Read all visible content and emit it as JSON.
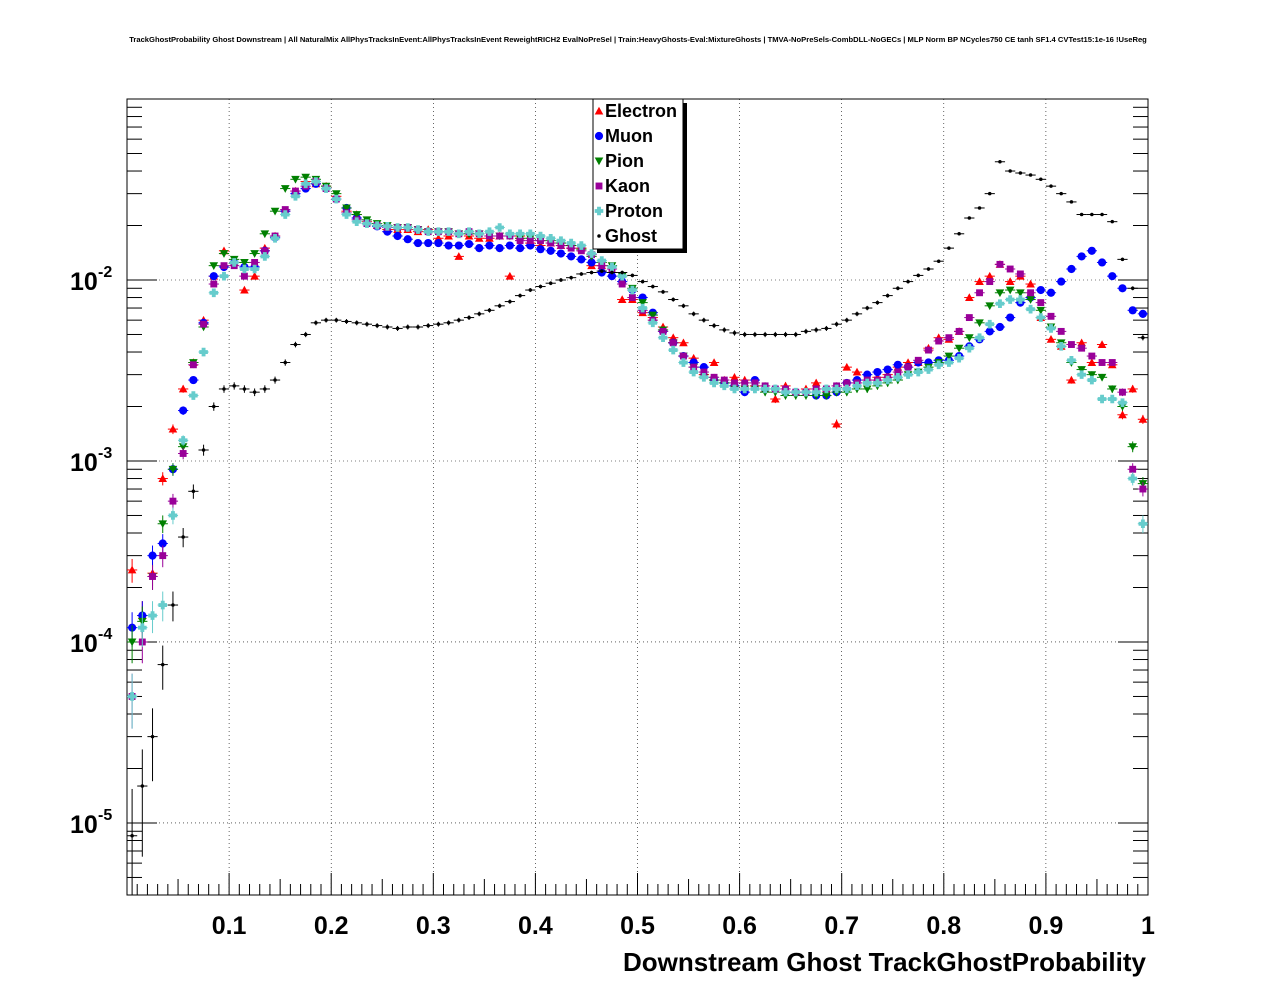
{
  "chart_data": {
    "type": "scatter",
    "title": "TrackGhostProbability Ghost Downstream | All NaturalMix AllPhysTracksInEvent:AllPhysTracksInEvent ReweightRICH2 EvalNoPreSel | Train:HeavyGhosts-Eval:MixtureGhosts | TMVA-NoPreSels-CombDLL-NoGECs | MLP Norm BP NCycles750 CE tanh SF1.4 CVTest15:1e-16 !UseReg",
    "xlabel": "Downstream Ghost TrackGhostProbability",
    "ylabel": "",
    "xlim": [
      0,
      1
    ],
    "ylim": [
      4e-06,
      0.1
    ],
    "yscale": "log",
    "grid": true,
    "legend_position": "top-center",
    "x_ticks": [
      "0.1",
      "0.2",
      "0.3",
      "0.4",
      "0.5",
      "0.6",
      "0.7",
      "0.8",
      "0.9",
      "1"
    ],
    "x_tick_values": [
      0.1,
      0.2,
      0.3,
      0.4,
      0.5,
      0.6,
      0.7,
      0.8,
      0.9,
      1.0
    ],
    "y_ticks": [
      {
        "value": 0.01,
        "base": "10",
        "exp": "-2"
      },
      {
        "value": 0.001,
        "base": "10",
        "exp": "-3"
      },
      {
        "value": 0.0001,
        "base": "10",
        "exp": "-4"
      },
      {
        "value": 1e-05,
        "base": "10",
        "exp": "-5"
      }
    ],
    "x": [
      0.005,
      0.015,
      0.025,
      0.035,
      0.045,
      0.055,
      0.065,
      0.075,
      0.085,
      0.095,
      0.105,
      0.115,
      0.125,
      0.135,
      0.145,
      0.155,
      0.165,
      0.175,
      0.185,
      0.195,
      0.205,
      0.215,
      0.225,
      0.235,
      0.245,
      0.255,
      0.265,
      0.275,
      0.285,
      0.295,
      0.305,
      0.315,
      0.325,
      0.335,
      0.345,
      0.355,
      0.365,
      0.375,
      0.385,
      0.395,
      0.405,
      0.415,
      0.425,
      0.435,
      0.445,
      0.455,
      0.465,
      0.475,
      0.485,
      0.495,
      0.505,
      0.515,
      0.525,
      0.535,
      0.545,
      0.555,
      0.565,
      0.575,
      0.585,
      0.595,
      0.605,
      0.615,
      0.625,
      0.635,
      0.645,
      0.655,
      0.665,
      0.675,
      0.685,
      0.695,
      0.705,
      0.715,
      0.725,
      0.735,
      0.745,
      0.755,
      0.765,
      0.775,
      0.785,
      0.795,
      0.805,
      0.815,
      0.825,
      0.835,
      0.845,
      0.855,
      0.865,
      0.875,
      0.885,
      0.895,
      0.905,
      0.915,
      0.925,
      0.935,
      0.945,
      0.955,
      0.965,
      0.975,
      0.985,
      0.995
    ],
    "series": [
      {
        "name": "Electron",
        "color": "#ff0000",
        "marker": "triangle-up",
        "values": [
          0.00025,
          0.00014,
          0.00024,
          0.0008,
          0.0015,
          0.0025,
          0.0035,
          0.006,
          0.0105,
          0.0145,
          0.0125,
          0.0088,
          0.0105,
          0.015,
          0.0175,
          0.024,
          0.031,
          0.035,
          0.034,
          0.033,
          0.029,
          0.024,
          0.023,
          0.021,
          0.02,
          0.019,
          0.019,
          0.019,
          0.0185,
          0.019,
          0.017,
          0.0175,
          0.0135,
          0.0175,
          0.017,
          0.017,
          0.0175,
          0.0105,
          0.0175,
          0.016,
          0.0155,
          0.016,
          0.0155,
          0.0155,
          0.015,
          0.012,
          0.012,
          0.011,
          0.0078,
          0.0078,
          0.0066,
          0.0062,
          0.0055,
          0.0048,
          0.0045,
          0.0037,
          0.003,
          0.0035,
          0.0028,
          0.0029,
          0.0028,
          0.0026,
          0.0025,
          0.0022,
          0.0026,
          0.0024,
          0.0025,
          0.0027,
          0.0025,
          0.0016,
          0.0033,
          0.0031,
          0.0028,
          0.0029,
          0.003,
          0.0033,
          0.0035,
          0.0035,
          0.0042,
          0.0048,
          0.0047,
          0.0052,
          0.008,
          0.0098,
          0.0105,
          0.0122,
          0.0098,
          0.0105,
          0.0095,
          0.0062,
          0.0047,
          0.0043,
          0.0028,
          0.0045,
          0.0035,
          0.0044,
          0.0034,
          0.0018,
          0.0025,
          0.0017
        ]
      },
      {
        "name": "Muon",
        "color": "#0000ff",
        "marker": "circle",
        "values": [
          0.00012,
          0.00014,
          0.0003,
          0.00035,
          0.0009,
          0.0019,
          0.0028,
          0.0058,
          0.0105,
          0.0118,
          0.0125,
          0.0118,
          0.0118,
          0.0145,
          0.0172,
          0.024,
          0.03,
          0.032,
          0.034,
          0.032,
          0.028,
          0.025,
          0.022,
          0.0205,
          0.0198,
          0.0185,
          0.0175,
          0.0168,
          0.016,
          0.016,
          0.016,
          0.0155,
          0.0155,
          0.0158,
          0.015,
          0.0155,
          0.015,
          0.0155,
          0.015,
          0.0155,
          0.0148,
          0.0145,
          0.014,
          0.0135,
          0.013,
          0.0125,
          0.011,
          0.0105,
          0.0098,
          0.0088,
          0.008,
          0.0066,
          0.0052,
          0.0045,
          0.0038,
          0.0035,
          0.0033,
          0.0028,
          0.0027,
          0.0026,
          0.0024,
          0.0028,
          0.0025,
          0.0025,
          0.0024,
          0.0024,
          0.0024,
          0.0023,
          0.0023,
          0.0024,
          0.0027,
          0.0028,
          0.003,
          0.0031,
          0.0032,
          0.0034,
          0.0033,
          0.0035,
          0.0035,
          0.0036,
          0.0036,
          0.0038,
          0.0043,
          0.0047,
          0.0052,
          0.0055,
          0.0062,
          0.0075,
          0.008,
          0.0088,
          0.0085,
          0.0098,
          0.0115,
          0.0135,
          0.0145,
          0.0125,
          0.0105,
          0.009,
          0.0068,
          0.0065
        ]
      },
      {
        "name": "Pion",
        "color": "#008000",
        "marker": "triangle-down",
        "values": [
          0.0001,
          0.00013,
          0.00023,
          0.00045,
          0.0009,
          0.0012,
          0.0035,
          0.0055,
          0.012,
          0.014,
          0.013,
          0.0125,
          0.014,
          0.018,
          0.024,
          0.032,
          0.036,
          0.037,
          0.036,
          0.033,
          0.03,
          0.025,
          0.023,
          0.0215,
          0.0205,
          0.02,
          0.0195,
          0.0195,
          0.019,
          0.0185,
          0.0185,
          0.0185,
          0.018,
          0.018,
          0.018,
          0.0175,
          0.0175,
          0.0175,
          0.017,
          0.017,
          0.0165,
          0.0165,
          0.016,
          0.0155,
          0.0148,
          0.0135,
          0.0125,
          0.012,
          0.0105,
          0.009,
          0.0075,
          0.0064,
          0.0053,
          0.0045,
          0.0038,
          0.0033,
          0.0029,
          0.0028,
          0.0027,
          0.0025,
          0.0025,
          0.0025,
          0.0024,
          0.0024,
          0.0023,
          0.0023,
          0.0023,
          0.0023,
          0.0023,
          0.0024,
          0.0024,
          0.0025,
          0.0025,
          0.0026,
          0.0027,
          0.0028,
          0.003,
          0.0031,
          0.0033,
          0.0035,
          0.0038,
          0.0042,
          0.0048,
          0.0058,
          0.0072,
          0.0085,
          0.0088,
          0.0085,
          0.0078,
          0.0068,
          0.0055,
          0.0045,
          0.0035,
          0.0032,
          0.003,
          0.0029,
          0.0025,
          0.002,
          0.0012,
          0.00075
        ]
      },
      {
        "name": "Kaon",
        "color": "#990099",
        "marker": "square",
        "values": [
          5e-05,
          0.0001,
          0.00023,
          0.0003,
          0.0006,
          0.0011,
          0.0034,
          0.0057,
          0.0095,
          0.012,
          0.012,
          0.0105,
          0.0125,
          0.0145,
          0.0175,
          0.0245,
          0.031,
          0.033,
          0.035,
          0.032,
          0.028,
          0.0235,
          0.0215,
          0.0205,
          0.02,
          0.0195,
          0.0195,
          0.0195,
          0.019,
          0.0185,
          0.0185,
          0.0185,
          0.018,
          0.0185,
          0.018,
          0.0175,
          0.0175,
          0.0175,
          0.0165,
          0.0165,
          0.0165,
          0.016,
          0.0155,
          0.015,
          0.0145,
          0.0138,
          0.012,
          0.0115,
          0.0095,
          0.008,
          0.0068,
          0.006,
          0.0052,
          0.0045,
          0.0038,
          0.0033,
          0.0031,
          0.0029,
          0.0028,
          0.0027,
          0.0027,
          0.0027,
          0.0026,
          0.0025,
          0.0025,
          0.0024,
          0.0024,
          0.0025,
          0.0025,
          0.0026,
          0.0027,
          0.0027,
          0.0028,
          0.0028,
          0.0029,
          0.0031,
          0.0033,
          0.0036,
          0.0041,
          0.0046,
          0.0048,
          0.0052,
          0.0062,
          0.0085,
          0.0098,
          0.0122,
          0.0115,
          0.0108,
          0.0085,
          0.0075,
          0.0063,
          0.0052,
          0.0044,
          0.0042,
          0.0038,
          0.0035,
          0.0035,
          0.0024,
          0.0009,
          0.0007
        ]
      },
      {
        "name": "Proton",
        "color": "#66cccc",
        "marker": "cross",
        "values": [
          5e-05,
          0.00012,
          0.00014,
          0.00016,
          0.0005,
          0.0013,
          0.0023,
          0.004,
          0.0085,
          0.0105,
          0.0125,
          0.0115,
          0.0115,
          0.0135,
          0.017,
          0.023,
          0.029,
          0.034,
          0.035,
          0.032,
          0.028,
          0.023,
          0.021,
          0.0205,
          0.02,
          0.0198,
          0.0195,
          0.0195,
          0.019,
          0.0185,
          0.0185,
          0.0185,
          0.018,
          0.0185,
          0.018,
          0.0185,
          0.0195,
          0.018,
          0.018,
          0.018,
          0.0175,
          0.017,
          0.0165,
          0.016,
          0.0155,
          0.014,
          0.0128,
          0.0118,
          0.0105,
          0.0088,
          0.007,
          0.0058,
          0.0048,
          0.0041,
          0.0035,
          0.0031,
          0.0029,
          0.0027,
          0.0026,
          0.0025,
          0.0025,
          0.0025,
          0.0025,
          0.0025,
          0.0024,
          0.0024,
          0.0024,
          0.0024,
          0.0025,
          0.0025,
          0.0025,
          0.0026,
          0.0027,
          0.0027,
          0.0028,
          0.0029,
          0.003,
          0.0031,
          0.0032,
          0.0034,
          0.0035,
          0.0037,
          0.0042,
          0.0048,
          0.0057,
          0.0074,
          0.0078,
          0.0078,
          0.0069,
          0.0062,
          0.0054,
          0.0043,
          0.0036,
          0.003,
          0.0028,
          0.0022,
          0.0022,
          0.0021,
          0.0008,
          0.00045
        ]
      },
      {
        "name": "Ghost",
        "color": "#000000",
        "marker": "dot",
        "values": [
          8.5e-06,
          1.6e-05,
          3e-05,
          7.5e-05,
          0.00016,
          0.00038,
          0.00068,
          0.00115,
          0.002,
          0.0025,
          0.0026,
          0.0025,
          0.0024,
          0.0025,
          0.0028,
          0.0035,
          0.0044,
          0.005,
          0.0058,
          0.006,
          0.006,
          0.0059,
          0.0058,
          0.0057,
          0.0056,
          0.0055,
          0.0054,
          0.0055,
          0.0055,
          0.0056,
          0.0057,
          0.0058,
          0.006,
          0.0062,
          0.0065,
          0.0068,
          0.0072,
          0.0076,
          0.0082,
          0.0088,
          0.0092,
          0.0096,
          0.01,
          0.0103,
          0.0108,
          0.011,
          0.0112,
          0.011,
          0.011,
          0.0106,
          0.0098,
          0.0092,
          0.0086,
          0.0078,
          0.0072,
          0.0065,
          0.006,
          0.0056,
          0.0053,
          0.0051,
          0.005,
          0.005,
          0.005,
          0.005,
          0.005,
          0.005,
          0.0052,
          0.0053,
          0.0054,
          0.0057,
          0.006,
          0.0065,
          0.007,
          0.0075,
          0.0082,
          0.009,
          0.0098,
          0.0106,
          0.0115,
          0.0127,
          0.015,
          0.018,
          0.022,
          0.025,
          0.03,
          0.045,
          0.04,
          0.039,
          0.038,
          0.036,
          0.033,
          0.03,
          0.027,
          0.023,
          0.023,
          0.023,
          0.021,
          0.013,
          0.009,
          0.0048
        ]
      }
    ]
  }
}
